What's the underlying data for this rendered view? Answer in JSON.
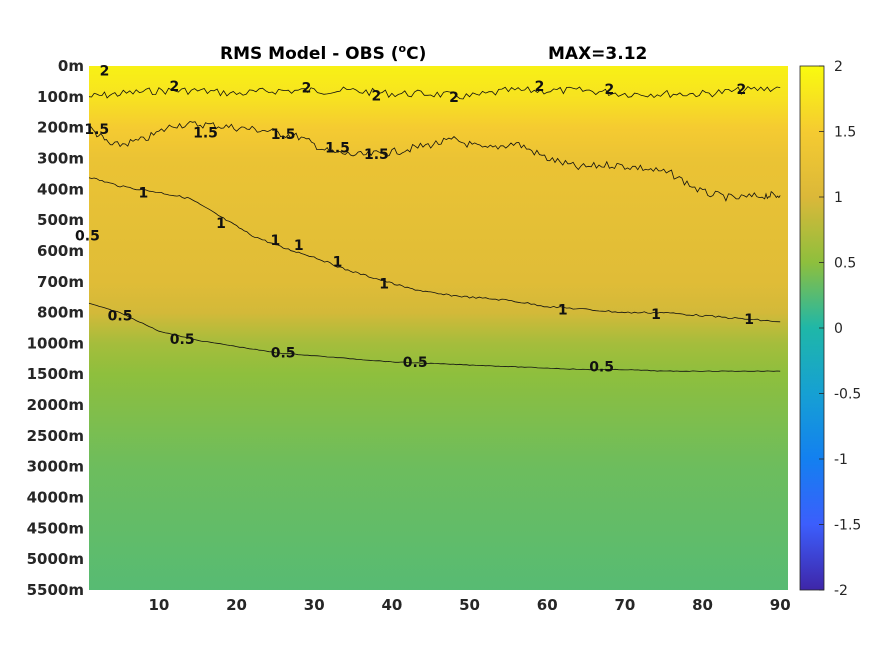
{
  "chart_data": {
    "type": "heatmap",
    "title": "RMS Model - OBS (",
    "title_sup": "o",
    "title_unit": "C)",
    "max_label": "MAX=3.12",
    "xlabel": "",
    "ylabel": "",
    "x_ticks": [
      "10",
      "20",
      "30",
      "40",
      "50",
      "60",
      "70",
      "80",
      "90"
    ],
    "x_tick_values": [
      10,
      20,
      30,
      40,
      50,
      60,
      70,
      80,
      90
    ],
    "xlim": [
      1,
      91
    ],
    "y_ticks": [
      "0m",
      "100m",
      "200m",
      "300m",
      "400m",
      "500m",
      "600m",
      "700m",
      "800m",
      "1000m",
      "1500m",
      "2000m",
      "2500m",
      "3000m",
      "4000m",
      "4500m",
      "5000m",
      "5500m"
    ],
    "colorbar": {
      "range": [
        -2,
        2
      ],
      "ticks": [
        "2",
        "1.5",
        "1",
        "0.5",
        "0",
        "-0.5",
        "-1",
        "-1.5",
        "-2"
      ],
      "tick_values": [
        2,
        1.5,
        1,
        0.5,
        0,
        -0.5,
        -1,
        -1.5,
        -2
      ],
      "colormap": "parula"
    },
    "contours": [
      {
        "level": 2,
        "points": [
          [
            1,
            1.0
          ],
          [
            5,
            0.9
          ],
          [
            10,
            0.8
          ],
          [
            15,
            0.8
          ],
          [
            20,
            0.9
          ],
          [
            25,
            0.8
          ],
          [
            30,
            0.8
          ],
          [
            35,
            0.8
          ],
          [
            40,
            0.9
          ],
          [
            45,
            0.9
          ],
          [
            50,
            1.0
          ],
          [
            55,
            0.8
          ],
          [
            60,
            0.8
          ],
          [
            65,
            0.8
          ],
          [
            70,
            0.9
          ],
          [
            75,
            0.9
          ],
          [
            80,
            0.9
          ],
          [
            85,
            0.8
          ],
          [
            90,
            0.7
          ]
        ],
        "labels": [
          {
            "text": "2",
            "x": 3,
            "depth_index": 0.15
          },
          {
            "text": "2",
            "x": 12,
            "depth_index": 0.65
          },
          {
            "text": "2",
            "x": 29,
            "depth_index": 0.7
          },
          {
            "text": "2",
            "x": 38,
            "depth_index": 0.95
          },
          {
            "text": "2",
            "x": 48,
            "depth_index": 1.0
          },
          {
            "text": "2",
            "x": 59,
            "depth_index": 0.65
          },
          {
            "text": "2",
            "x": 68,
            "depth_index": 0.75
          },
          {
            "text": "2",
            "x": 85,
            "depth_index": 0.75
          }
        ]
      },
      {
        "level": 1.5,
        "points": [
          [
            1,
            2.0
          ],
          [
            4,
            2.6
          ],
          [
            8,
            2.4
          ],
          [
            12,
            1.9
          ],
          [
            16,
            1.9
          ],
          [
            20,
            2.0
          ],
          [
            24,
            2.1
          ],
          [
            28,
            2.3
          ],
          [
            32,
            2.8
          ],
          [
            36,
            2.9
          ],
          [
            40,
            2.8
          ],
          [
            44,
            2.6
          ],
          [
            48,
            2.4
          ],
          [
            52,
            2.7
          ],
          [
            56,
            2.5
          ],
          [
            60,
            3.0
          ],
          [
            64,
            3.3
          ],
          [
            68,
            3.2
          ],
          [
            72,
            3.3
          ],
          [
            76,
            3.5
          ],
          [
            80,
            4.1
          ],
          [
            84,
            4.3
          ],
          [
            88,
            4.2
          ],
          [
            90,
            4.2
          ]
        ],
        "labels": [
          {
            "text": "1.5",
            "x": 2,
            "depth_index": 2.05
          },
          {
            "text": "1.5",
            "x": 16,
            "depth_index": 2.15
          },
          {
            "text": "1.5",
            "x": 26,
            "depth_index": 2.2
          },
          {
            "text": "1.5",
            "x": 33,
            "depth_index": 2.65
          },
          {
            "text": "1.5",
            "x": 38,
            "depth_index": 2.85
          }
        ]
      },
      {
        "level": 1,
        "points": [
          [
            1,
            3.6
          ],
          [
            5,
            3.9
          ],
          [
            10,
            4.1
          ],
          [
            14,
            4.3
          ],
          [
            18,
            4.9
          ],
          [
            22,
            5.5
          ],
          [
            26,
            5.9
          ],
          [
            30,
            6.2
          ],
          [
            34,
            6.6
          ],
          [
            38,
            6.9
          ],
          [
            42,
            7.2
          ],
          [
            46,
            7.4
          ],
          [
            50,
            7.5
          ],
          [
            55,
            7.6
          ],
          [
            60,
            7.8
          ],
          [
            65,
            7.9
          ],
          [
            70,
            8.0
          ],
          [
            75,
            8.0
          ],
          [
            80,
            8.1
          ],
          [
            85,
            8.2
          ],
          [
            90,
            8.3
          ]
        ],
        "labels": [
          {
            "text": "1",
            "x": 8,
            "depth_index": 4.1
          },
          {
            "text": "1",
            "x": 18,
            "depth_index": 5.1
          },
          {
            "text": "1",
            "x": 25,
            "depth_index": 5.65
          },
          {
            "text": "1",
            "x": 28,
            "depth_index": 5.8
          },
          {
            "text": "1",
            "x": 33,
            "depth_index": 6.35
          },
          {
            "text": "1",
            "x": 39,
            "depth_index": 7.05
          },
          {
            "text": "1",
            "x": 62,
            "depth_index": 7.9
          },
          {
            "text": "1",
            "x": 74,
            "depth_index": 8.05
          },
          {
            "text": "1",
            "x": 86,
            "depth_index": 8.2
          }
        ]
      },
      {
        "level": 0.5,
        "points": [
          [
            1,
            7.7
          ],
          [
            5,
            8.0
          ],
          [
            10,
            8.6
          ],
          [
            15,
            8.9
          ],
          [
            20,
            9.1
          ],
          [
            25,
            9.3
          ],
          [
            30,
            9.4
          ],
          [
            35,
            9.5
          ],
          [
            40,
            9.6
          ],
          [
            45,
            9.65
          ],
          [
            50,
            9.7
          ],
          [
            55,
            9.75
          ],
          [
            60,
            9.8
          ],
          [
            65,
            9.85
          ],
          [
            70,
            9.85
          ],
          [
            75,
            9.9
          ],
          [
            80,
            9.9
          ],
          [
            85,
            9.9
          ],
          [
            90,
            9.9
          ]
        ],
        "labels": [
          {
            "text": "0.5",
            "x": 5,
            "depth_index": 8.1
          },
          {
            "text": "0.5",
            "x": 13,
            "depth_index": 8.85
          },
          {
            "text": "0.5",
            "x": 26,
            "depth_index": 9.3
          },
          {
            "text": "0.5",
            "x": 43,
            "depth_index": 9.6
          },
          {
            "text": "0.5",
            "x": 67,
            "depth_index": 9.75
          },
          {
            "text": "0.5",
            "x": 0.8,
            "depth_index": 5.5
          }
        ]
      }
    ],
    "field_profile": [
      {
        "depth_index": 0,
        "value": 1.9
      },
      {
        "depth_index": 1,
        "value": 1.75
      },
      {
        "depth_index": 2,
        "value": 1.5
      },
      {
        "depth_index": 3,
        "value": 1.3
      },
      {
        "depth_index": 5,
        "value": 1.2
      },
      {
        "depth_index": 7,
        "value": 1.1
      },
      {
        "depth_index": 8,
        "value": 0.95
      },
      {
        "depth_index": 9,
        "value": 0.65
      },
      {
        "depth_index": 10,
        "value": 0.5
      },
      {
        "depth_index": 11,
        "value": 0.45
      },
      {
        "depth_index": 13,
        "value": 0.35
      },
      {
        "depth_index": 15,
        "value": 0.3
      },
      {
        "depth_index": 17,
        "value": 0.25
      }
    ]
  }
}
